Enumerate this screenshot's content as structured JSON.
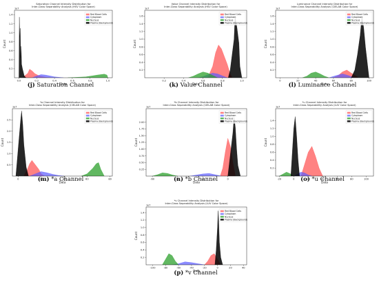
{
  "legend_labels": [
    "Red Blood Cells",
    "Cytoplasm",
    "Nucleus",
    "Plasma (Background)"
  ],
  "colors": {
    "red_blood_cells": "#ff4d4d",
    "cytoplasm": "#5b5bff",
    "nucleus": "#2ca02c",
    "plasma_background": "#000000"
  },
  "chart_data": [
    {
      "id": "j",
      "type": "area",
      "title": [
        "Saturation Channel Intensity Distribution for",
        "Inter-Class Separability Analysis (HSV Color Space)"
      ],
      "xlabel": "Data",
      "ylabel": "Count",
      "scale_label": "1e7",
      "xlim": [
        -0.05,
        1.05
      ],
      "ylim": [
        0,
        1.5
      ],
      "xticks": [
        0,
        0.2,
        0.4,
        0.6,
        0.8,
        1.0
      ],
      "xtick_labels": [
        "0.0",
        "0.2",
        "0.4",
        "0.6",
        "0.8",
        "1.0"
      ],
      "yticks": [
        0.2,
        0.4,
        0.6,
        0.8,
        1.0,
        1.2,
        1.4
      ],
      "ytick_labels": [
        "0.2",
        "0.4",
        "0.6",
        "0.8",
        "1.0",
        "1.2",
        "1.4"
      ],
      "series": [
        {
          "name": "Red Blood Cells",
          "x": [
            0.05,
            0.1,
            0.12,
            0.15,
            0.18,
            0.22,
            0.25,
            0.3,
            0.35
          ],
          "y": [
            0.02,
            0.1,
            0.19,
            0.15,
            0.09,
            0.05,
            0.03,
            0.01,
            0.0
          ]
        },
        {
          "name": "Cytoplasm",
          "x": [
            0.15,
            0.2,
            0.25,
            0.3,
            0.35,
            0.4,
            0.45,
            0.5
          ],
          "y": [
            0.0,
            0.04,
            0.07,
            0.06,
            0.04,
            0.02,
            0.01,
            0.0
          ]
        },
        {
          "name": "Nucleus",
          "x": [
            0.55,
            0.65,
            0.75,
            0.82,
            0.88,
            0.92,
            0.96,
            0.99,
            1.0
          ],
          "y": [
            0.0,
            0.01,
            0.02,
            0.04,
            0.06,
            0.07,
            0.08,
            0.06,
            0.0
          ]
        },
        {
          "name": "Plasma (Background)",
          "x": [
            0.0,
            0.005,
            0.01,
            0.015,
            0.02,
            0.025,
            0.03,
            0.04,
            0.05,
            0.06,
            0.08
          ],
          "y": [
            0.0,
            1.35,
            0.9,
            1.1,
            0.45,
            0.7,
            0.3,
            0.2,
            0.12,
            0.04,
            0.0
          ]
        }
      ],
      "caption_letter": "(j)",
      "caption_text": "Saturation Channel"
    },
    {
      "id": "k",
      "type": "area",
      "title": [
        "Value Channel Intensity Distribution for",
        "Inter-Class Separability Analysis (HSV Color Space)"
      ],
      "xlabel": "Data",
      "ylabel": "Count",
      "scale_label": "1e7",
      "xlim": [
        0.0,
        1.05
      ],
      "ylim": [
        0,
        1.75
      ],
      "xticks": [
        0.2,
        0.4,
        0.6,
        0.8,
        1.0
      ],
      "xtick_labels": [
        "0.2",
        "0.4",
        "0.6",
        "0.8",
        "1.0"
      ],
      "yticks": [
        0.2,
        0.4,
        0.6,
        0.8,
        1.0,
        1.2,
        1.4,
        1.6
      ],
      "ytick_labels": [
        "0.2",
        "0.4",
        "0.6",
        "0.8",
        "1.0",
        "1.2",
        "1.4",
        "1.6"
      ],
      "series": [
        {
          "name": "Red Blood Cells",
          "x": [
            0.65,
            0.7,
            0.73,
            0.76,
            0.79,
            0.82,
            0.85,
            0.88,
            0.9
          ],
          "y": [
            0.0,
            0.3,
            0.65,
            0.85,
            0.75,
            0.55,
            0.35,
            0.1,
            0.0
          ]
        },
        {
          "name": "Cytoplasm",
          "x": [
            0.55,
            0.6,
            0.65,
            0.7,
            0.75,
            0.8,
            0.85
          ],
          "y": [
            0.0,
            0.03,
            0.08,
            0.12,
            0.1,
            0.05,
            0.0
          ]
        },
        {
          "name": "Nucleus",
          "x": [
            0.45,
            0.5,
            0.55,
            0.6,
            0.65,
            0.7,
            0.75
          ],
          "y": [
            0.0,
            0.04,
            0.1,
            0.15,
            0.12,
            0.06,
            0.0
          ]
        },
        {
          "name": "Plasma (Background)",
          "x": [
            0.86,
            0.88,
            0.9,
            0.92,
            0.93,
            0.95,
            0.97,
            0.98,
            1.0
          ],
          "y": [
            0.0,
            0.2,
            0.6,
            1.0,
            1.6,
            1.3,
            0.9,
            0.3,
            0.0
          ]
        }
      ],
      "caption_letter": "(k)",
      "caption_text": "Value Channel"
    },
    {
      "id": "l",
      "type": "area",
      "title": [
        "Luminance Channel Intensity Distribution for",
        "Inter-Class Separability Analysis (CIELAB Color Space)"
      ],
      "xlabel": "Data",
      "ylabel": "Count",
      "scale_label": "1e7",
      "xlim": [
        -5,
        105
      ],
      "ylim": [
        0,
        1.75
      ],
      "xticks": [
        0,
        20,
        40,
        60,
        80,
        100
      ],
      "xtick_labels": [
        "0",
        "20",
        "40",
        "60",
        "80",
        "100"
      ],
      "yticks": [
        0.2,
        0.4,
        0.6,
        0.8,
        1.0,
        1.2,
        1.4,
        1.6
      ],
      "ytick_labels": [
        "0.2",
        "0.4",
        "0.6",
        "0.8",
        "1.0",
        "1.2",
        "1.4",
        "1.6"
      ],
      "series": [
        {
          "name": "Red Blood Cells",
          "x": [
            60,
            65,
            70,
            75,
            80,
            85,
            88
          ],
          "y": [
            0.0,
            0.05,
            0.15,
            0.2,
            0.12,
            0.05,
            0.0
          ]
        },
        {
          "name": "Cytoplasm",
          "x": [
            55,
            62,
            70,
            75,
            80,
            85
          ],
          "y": [
            0.0,
            0.05,
            0.1,
            0.07,
            0.03,
            0.0
          ]
        },
        {
          "name": "Nucleus",
          "x": [
            25,
            30,
            35,
            40,
            45,
            50,
            55
          ],
          "y": [
            0.0,
            0.04,
            0.12,
            0.15,
            0.1,
            0.04,
            0.0
          ]
        },
        {
          "name": "Plasma (Background)",
          "x": [
            80,
            84,
            87,
            90,
            92,
            94,
            96,
            98,
            100
          ],
          "y": [
            0.0,
            0.2,
            0.6,
            1.1,
            1.6,
            1.3,
            0.8,
            0.4,
            0.0
          ]
        }
      ],
      "caption_letter": "(l)",
      "caption_text": "Luminance Channel"
    },
    {
      "id": "m",
      "type": "area",
      "title": [
        "*a Channel Intensity Distribution for",
        "Inter-Class Separability Analysis (CIELAB Color Space)"
      ],
      "xlabel": "Data",
      "ylabel": "Count",
      "scale_label": "1e7",
      "xlim": [
        -5,
        82
      ],
      "ylim": [
        0,
        3.0
      ],
      "xticks": [
        0,
        20,
        40,
        60,
        80
      ],
      "xtick_labels": [
        "0",
        "20",
        "40",
        "60",
        "80"
      ],
      "yticks": [
        0.5,
        1.0,
        1.5,
        2.0,
        2.5
      ],
      "ytick_labels": [
        "0.5",
        "1.0",
        "1.5",
        "2.0",
        "2.5"
      ],
      "series": [
        {
          "name": "Red Blood Cells",
          "x": [
            5,
            8,
            10,
            12,
            15,
            18,
            20,
            23
          ],
          "y": [
            0.0,
            0.3,
            0.55,
            0.7,
            0.5,
            0.3,
            0.1,
            0.0
          ]
        },
        {
          "name": "Cytoplasm",
          "x": [
            10,
            15,
            20,
            25,
            30,
            35,
            40
          ],
          "y": [
            0.0,
            0.1,
            0.2,
            0.15,
            0.08,
            0.03,
            0.0
          ]
        },
        {
          "name": "Nucleus",
          "x": [
            55,
            60,
            65,
            68,
            70,
            72,
            75
          ],
          "y": [
            0.0,
            0.1,
            0.35,
            0.55,
            0.6,
            0.3,
            0.0
          ]
        },
        {
          "name": "Plasma (Background)",
          "x": [
            -2,
            0,
            2,
            3,
            4,
            5,
            7,
            9
          ],
          "y": [
            0.0,
            1.2,
            2.4,
            2.9,
            2.3,
            1.4,
            0.4,
            0.0
          ]
        }
      ],
      "caption_letter": "(m)",
      "caption_text": "*a Channel"
    },
    {
      "id": "n",
      "type": "area",
      "title": [
        "*b Channel Intensity Distribution for",
        "Inter-Class Separability Analysis (CIELAB Color Space)"
      ],
      "xlabel": "Data",
      "ylabel": "Count",
      "scale_label": "1e7",
      "xlim": [
        -65,
        15
      ],
      "ylim": [
        0,
        2.5
      ],
      "xticks": [
        -60,
        -40,
        -20,
        0
      ],
      "xtick_labels": [
        "-60",
        "-40",
        "-20",
        "0"
      ],
      "yticks": [
        0.25,
        0.5,
        0.75,
        1.0,
        1.25,
        1.5,
        1.75,
        2.0
      ],
      "ytick_labels": [
        "0.25",
        "0.50",
        "0.75",
        "1.00",
        "1.25",
        "1.50",
        "1.75",
        "2.00"
      ],
      "series": [
        {
          "name": "Red Blood Cells",
          "x": [
            -6,
            -4,
            -2,
            0,
            2,
            4,
            6
          ],
          "y": [
            0.0,
            0.3,
            0.9,
            1.4,
            1.1,
            0.5,
            0.0
          ]
        },
        {
          "name": "Cytoplasm",
          "x": [
            -30,
            -25,
            -20,
            -15,
            -10,
            -5
          ],
          "y": [
            0.0,
            0.04,
            0.08,
            0.1,
            0.05,
            0.0
          ]
        },
        {
          "name": "Nucleus",
          "x": [
            -60,
            -56,
            -52,
            -48,
            -44,
            -40
          ],
          "y": [
            0.0,
            0.05,
            0.12,
            0.1,
            0.04,
            0.0
          ]
        },
        {
          "name": "Plasma (Background)",
          "x": [
            0,
            2,
            4,
            5,
            6,
            7,
            8,
            10
          ],
          "y": [
            0.0,
            0.8,
            1.6,
            2.2,
            1.8,
            1.0,
            0.4,
            0.0
          ]
        }
      ],
      "caption_letter": "(n)",
      "caption_text": "*b Channel"
    },
    {
      "id": "o",
      "type": "area",
      "title": [
        "*u Channel Intensity Distribution for",
        "Inter-Class Separability Analysis (LUV Color Space)"
      ],
      "xlabel": "Data",
      "ylabel": "Count",
      "scale_label": "1e7",
      "xlim": [
        -25,
        110
      ],
      "ylim": [
        0,
        1.7
      ],
      "xticks": [
        -20,
        0,
        20,
        40,
        60,
        80,
        100
      ],
      "xtick_labels": [
        "-20",
        "0",
        "20",
        "40",
        "60",
        "80",
        "100"
      ],
      "yticks": [
        0.2,
        0.4,
        0.6,
        0.8,
        1.0,
        1.2,
        1.4
      ],
      "ytick_labels": [
        "0.2",
        "0.4",
        "0.6",
        "0.8",
        "1.0",
        "1.2",
        "1.4"
      ],
      "series": [
        {
          "name": "Red Blood Cells",
          "x": [
            10,
            15,
            20,
            25,
            30,
            35,
            40
          ],
          "y": [
            0.0,
            0.3,
            0.6,
            0.75,
            0.5,
            0.2,
            0.0
          ]
        },
        {
          "name": "Cytoplasm",
          "x": [
            0,
            5,
            10,
            15,
            20,
            25
          ],
          "y": [
            0.0,
            0.05,
            0.1,
            0.08,
            0.03,
            0.0
          ]
        },
        {
          "name": "Nucleus",
          "x": [
            -20,
            -15,
            -10,
            -5,
            0
          ],
          "y": [
            0.0,
            0.05,
            0.1,
            0.06,
            0.0
          ]
        },
        {
          "name": "Plasma (Background)",
          "x": [
            -4,
            -2,
            0,
            2,
            4,
            6,
            8
          ],
          "y": [
            0.0,
            0.6,
            1.2,
            1.5,
            1.0,
            0.4,
            0.0
          ]
        }
      ],
      "caption_letter": "(o)",
      "caption_text": "*u Channel"
    },
    {
      "id": "p",
      "type": "area",
      "title": [
        "*v Channel Intensity Distribution for",
        "Inter-Class Separability Analysis (LUV Color Space)"
      ],
      "xlabel": "Data",
      "ylabel": "Count",
      "scale_label": "1e7",
      "xlim": [
        -110,
        45
      ],
      "ylim": [
        0,
        1.55
      ],
      "xticks": [
        -100,
        -80,
        -60,
        -40,
        -20,
        0,
        20,
        40
      ],
      "xtick_labels": [
        "-100",
        "-80",
        "-60",
        "-40",
        "-20",
        "0",
        "20",
        "40"
      ],
      "yticks": [
        0.2,
        0.4,
        0.6,
        0.8,
        1.0,
        1.2,
        1.4
      ],
      "ytick_labels": [
        "0.2",
        "0.4",
        "0.6",
        "0.8",
        "1.0",
        "1.2",
        "1.4"
      ],
      "series": [
        {
          "name": "Red Blood Cells",
          "x": [
            -20,
            -15,
            -10,
            -5,
            0,
            5
          ],
          "y": [
            0.0,
            0.1,
            0.25,
            0.3,
            0.15,
            0.0
          ]
        },
        {
          "name": "Cytoplasm",
          "x": [
            -70,
            -60,
            -50,
            -40,
            -30,
            -20
          ],
          "y": [
            0.0,
            0.03,
            0.08,
            0.06,
            0.03,
            0.0
          ]
        },
        {
          "name": "Nucleus",
          "x": [
            -85,
            -80,
            -75,
            -70,
            -65,
            -60
          ],
          "y": [
            0.0,
            0.15,
            0.3,
            0.25,
            0.1,
            0.0
          ]
        },
        {
          "name": "Plasma (Background)",
          "x": [
            -4,
            -2,
            0,
            1,
            2,
            3,
            5,
            8
          ],
          "y": [
            0.0,
            0.4,
            1.0,
            1.45,
            1.1,
            0.6,
            0.2,
            0.0
          ]
        }
      ],
      "caption_letter": "(p)",
      "caption_text": "*v Channel"
    }
  ]
}
